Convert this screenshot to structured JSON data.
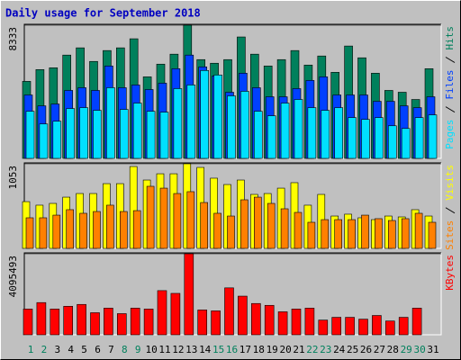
{
  "chart_data": [
    {
      "type": "bar",
      "title": "Daily usage for September 2018",
      "categories": [
        "1",
        "2",
        "3",
        "4",
        "5",
        "6",
        "7",
        "8",
        "9",
        "10",
        "11",
        "12",
        "13",
        "14",
        "15",
        "16",
        "17",
        "18",
        "19",
        "20",
        "21",
        "22",
        "23",
        "24",
        "25",
        "26",
        "27",
        "28",
        "29",
        "30",
        "31"
      ],
      "category_colors": [
        "#00805c",
        "#00805c",
        "#000000",
        "#000000",
        "#000000",
        "#000000",
        "#000000",
        "#00805c",
        "#00805c",
        "#000000",
        "#000000",
        "#000000",
        "#000000",
        "#000000",
        "#00805c",
        "#00805c",
        "#000000",
        "#000000",
        "#000000",
        "#000000",
        "#000000",
        "#00805c",
        "#00805c",
        "#000000",
        "#000000",
        "#000000",
        "#000000",
        "#000000",
        "#00805c",
        "#00805c",
        "#000000"
      ],
      "ylim": [
        0,
        8333
      ],
      "yticks": [
        8333
      ],
      "series": [
        {
          "name": "Hits",
          "color": "#00805c",
          "values": [
            4820,
            5557,
            5670,
            6464,
            6917,
            6067,
            6747,
            6917,
            7484,
            5103,
            5897,
            6521,
            8333,
            6180,
            5954,
            6180,
            7598,
            6521,
            5783,
            6180,
            6747,
            5840,
            6407,
            5387,
            7031,
            6294,
            5330,
            4253,
            4139,
            3686,
            5613
          ]
        },
        {
          "name": "Files",
          "color": "#0040ff",
          "values": [
            3969,
            3289,
            3402,
            4253,
            4423,
            4253,
            5783,
            4423,
            4593,
            4309,
            4706,
            5613,
            6464,
            5727,
            5160,
            4139,
            5330,
            4423,
            3856,
            3856,
            4366,
            4876,
            5103,
            3969,
            3969,
            3969,
            3572,
            3572,
            3289,
            3175,
            3856
          ]
        },
        {
          "name": "Pages",
          "color": "#00e0ff",
          "values": [
            2948,
            2155,
            2325,
            3119,
            3175,
            3005,
            4423,
            3062,
            3459,
            2948,
            2892,
            4366,
            4593,
            5500,
            5216,
            3912,
            4196,
            2948,
            2665,
            3459,
            3686,
            3175,
            3005,
            3175,
            2552,
            2438,
            2552,
            2041,
            1871,
            2552,
            2722
          ]
        }
      ]
    },
    {
      "type": "bar",
      "ylim": [
        0,
        1053
      ],
      "yticks": [
        1053
      ],
      "series": [
        {
          "name": "Visits",
          "color": "#ffff00",
          "values": [
            582,
            538,
            560,
            638,
            683,
            683,
            806,
            806,
            1019,
            851,
            929,
            929,
            1053,
            1008,
            874,
            795,
            851,
            672,
            683,
            750,
            818,
            538,
            672,
            403,
            426,
            381,
            358,
            403,
            392,
            482,
            403
          ]
        },
        {
          "name": "Sites",
          "color": "#ff8000",
          "values": [
            381,
            381,
            414,
            482,
            437,
            459,
            538,
            459,
            470,
            773,
            750,
            683,
            706,
            571,
            437,
            403,
            605,
            638,
            560,
            493,
            448,
            325,
            358,
            358,
            358,
            414,
            370,
            347,
            370,
            437,
            325
          ]
        }
      ]
    },
    {
      "type": "bar",
      "ylim": [
        0,
        4095493
      ],
      "yticks": [
        4095493
      ],
      "series": [
        {
          "name": "KBytes",
          "color": "#ff0000",
          "values": [
            1303120,
            1628900,
            1303120,
            1442740,
            1535820,
            1116960,
            1349660,
            1070420,
            1349660,
            1303120,
            2233920,
            2094300,
            4095493,
            1256580,
            1210040,
            2373540,
            1954680,
            1582360,
            1489280,
            1163500,
            1303120,
            1349660,
            744640,
            884260,
            884260,
            791180,
            977340,
            698100,
            884260,
            1349660,
            0
          ]
        }
      ]
    }
  ]
}
